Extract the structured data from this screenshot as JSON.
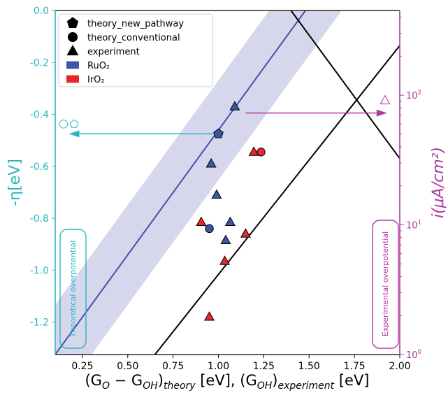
{
  "chart_data": {
    "type": "scatter",
    "x": {
      "label_main": "(G",
      "label_o": "O",
      "label_minus": " − G",
      "label_oh": "OH",
      "label_close": ")",
      "label_theory": "theory",
      "label_mid": " [eV], (G",
      "label_experiment": "experiment",
      "label_end": " [eV]",
      "lim": [
        0.1,
        2.0
      ],
      "ticks": [
        "0.25",
        "0.50",
        "0.75",
        "1.00",
        "1.25",
        "1.50",
        "1.75",
        "2.00"
      ],
      "tick_values": [
        0.25,
        0.5,
        0.75,
        1.0,
        1.25,
        1.5,
        1.75,
        2.0
      ]
    },
    "y_left": {
      "label": "-η[eV]",
      "lim": [
        -1.325,
        0.0
      ],
      "ticks": [
        "0.0",
        "-0.2",
        "-0.4",
        "-0.6",
        "-0.8",
        "-1.0",
        "-1.2"
      ],
      "tick_values": [
        0.0,
        -0.2,
        -0.4,
        -0.6,
        -0.8,
        -1.0,
        -1.2
      ],
      "color": "#29b8be"
    },
    "y_right": {
      "label": "i(μA/cm²)",
      "scale": "log",
      "lim": [
        1,
        450
      ],
      "ticks_base": [
        "10",
        "10",
        "10"
      ],
      "ticks_exp": [
        "0",
        "1",
        "2"
      ],
      "tick_values": [
        1,
        10,
        100
      ],
      "color": "#b0389f"
    },
    "legend": {
      "placement": "top-left",
      "entries": [
        {
          "label": "theory_new_pathway",
          "marker": "pentagon",
          "color": "#000000"
        },
        {
          "label": "theory_conventional",
          "marker": "circle",
          "color": "#000000"
        },
        {
          "label": "experiment",
          "marker": "triangle",
          "color": "#000000"
        },
        {
          "label": "RuO₂",
          "marker": "square",
          "color": "#3c55a5"
        },
        {
          "label": "IrO₂",
          "marker": "square",
          "color": "#e8262b"
        }
      ]
    },
    "theory_line": {
      "x": [
        0.1,
        1.48
      ],
      "y": [
        -1.325,
        0.0
      ],
      "color": "#3c55a5"
    },
    "theory_band_halfwidth": 0.2,
    "band_color": "#c8c8e6",
    "experiment_lines": [
      {
        "x": [
          0.65,
          2.0
        ],
        "y": [
          -1.325,
          -0.135
        ],
        "color": "#000000"
      },
      {
        "x": [
          1.4,
          2.0
        ],
        "y": [
          0.0,
          -0.57
        ],
        "color": "#000000"
      }
    ],
    "points": [
      {
        "x": 1.0,
        "y": -0.475,
        "marker": "pentagon",
        "material": "RuO2"
      },
      {
        "x": 1.09,
        "y": -0.37,
        "marker": "triangle",
        "material": "RuO2"
      },
      {
        "x": 0.96,
        "y": -0.59,
        "marker": "triangle",
        "material": "RuO2"
      },
      {
        "x": 0.99,
        "y": -0.71,
        "marker": "triangle",
        "material": "RuO2"
      },
      {
        "x": 1.065,
        "y": -0.815,
        "marker": "triangle",
        "material": "RuO2"
      },
      {
        "x": 1.04,
        "y": -0.885,
        "marker": "triangle",
        "material": "RuO2"
      },
      {
        "x": 0.95,
        "y": -0.84,
        "marker": "circle",
        "material": "RuO2"
      },
      {
        "x": 1.235,
        "y": -0.545,
        "marker": "circle",
        "material": "IrO2"
      },
      {
        "x": 1.195,
        "y": -0.545,
        "marker": "triangle",
        "material": "IrO2"
      },
      {
        "x": 0.905,
        "y": -0.815,
        "marker": "triangle",
        "material": "IrO2"
      },
      {
        "x": 1.15,
        "y": -0.86,
        "marker": "triangle",
        "material": "IrO2"
      },
      {
        "x": 1.035,
        "y": -0.965,
        "marker": "triangle",
        "material": "IrO2"
      },
      {
        "x": 0.95,
        "y": -1.18,
        "marker": "triangle",
        "material": "IrO2"
      }
    ],
    "material_colors": {
      "RuO2": "#3c55a5",
      "IrO2": "#e8262b"
    },
    "annotations": {
      "left_box_text": "Theoretical overpotential",
      "right_box_text": "Experimental overpotential"
    },
    "arrows": {
      "left_arrow": {
        "y": -0.475,
        "x_from": 0.99,
        "x_to": 0.175,
        "color": "#29b8be",
        "markers": [
          "circle",
          "pentagon"
        ]
      },
      "right_arrow": {
        "y": -0.395,
        "x_from": 1.15,
        "x_to": 1.93,
        "color": "#b0389f",
        "marker": "triangle"
      }
    }
  }
}
